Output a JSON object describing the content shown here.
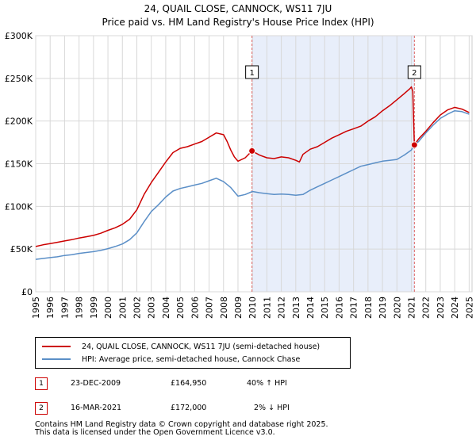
{
  "title": "24, QUAIL CLOSE, CANNOCK, WS11 7JU",
  "subtitle": "Price paid vs. HM Land Registry's House Price Index (HPI)",
  "colors": {
    "price_line": "#cc0000",
    "hpi_line": "#5b8fc7",
    "shade": "#e8eefa",
    "grid": "#d8d8d8",
    "marker": "#cc0000"
  },
  "chart_data": {
    "type": "line",
    "title": "24, QUAIL CLOSE, CANNOCK, WS11 7JU",
    "subtitle": "Price paid vs. HM Land Registry's House Price Index (HPI)",
    "xlim": [
      1995,
      2025.2
    ],
    "ylim": [
      0,
      300000
    ],
    "x_ticks": [
      1995,
      1996,
      1997,
      1998,
      1999,
      2000,
      2001,
      2002,
      2003,
      2004,
      2005,
      2006,
      2007,
      2008,
      2009,
      2010,
      2011,
      2012,
      2013,
      2014,
      2015,
      2016,
      2017,
      2018,
      2019,
      2020,
      2021,
      2022,
      2023,
      2024,
      2025
    ],
    "x_tick_labels": [
      "1995",
      "1996",
      "1997",
      "1998",
      "1999",
      "2000",
      "2001",
      "2002",
      "2003",
      "2004",
      "2005",
      "2006",
      "2007",
      "2008",
      "2009",
      "2010",
      "2011",
      "2012",
      "2013",
      "2014",
      "2015",
      "2016",
      "2017",
      "2018",
      "2019",
      "2020",
      "2021",
      "2022",
      "2023",
      "2024",
      "2025"
    ],
    "y_ticks": [
      0,
      50000,
      100000,
      150000,
      200000,
      250000,
      300000
    ],
    "y_tick_labels": [
      "£0",
      "£50K",
      "£100K",
      "£150K",
      "£200K",
      "£250K",
      "£300K"
    ],
    "grid": true,
    "shaded_range": [
      2009.97,
      2021.21
    ],
    "series": [
      {
        "name": "24, QUAIL CLOSE, CANNOCK, WS11 7JU (semi-detached house)",
        "color": "#cc0000",
        "x": [
          1995,
          1995.5,
          1996,
          1996.5,
          1997,
          1997.5,
          1998,
          1998.5,
          1999,
          1999.5,
          2000,
          2000.5,
          2001,
          2001.5,
          2002,
          2002.5,
          2003,
          2003.5,
          2004,
          2004.5,
          2005,
          2005.5,
          2006,
          2006.5,
          2007,
          2007.5,
          2008,
          2008.25,
          2008.5,
          2008.75,
          2009,
          2009.5,
          2009.97,
          2010.5,
          2011,
          2011.5,
          2012,
          2012.5,
          2013,
          2013.25,
          2013.5,
          2014,
          2014.5,
          2015,
          2015.5,
          2016,
          2016.5,
          2017,
          2017.5,
          2018,
          2018.5,
          2019,
          2019.5,
          2020,
          2020.5,
          2020.9,
          2021.0,
          2021.1,
          2021.21,
          2021.5,
          2022,
          2022.5,
          2023,
          2023.5,
          2024,
          2024.5,
          2025
        ],
        "y": [
          53000,
          55000,
          56500,
          58000,
          59500,
          61000,
          63000,
          64500,
          66000,
          68500,
          72000,
          75000,
          79000,
          85000,
          96000,
          114000,
          128000,
          140000,
          152000,
          163000,
          168000,
          170000,
          173000,
          176000,
          181000,
          186000,
          184000,
          176000,
          166000,
          158000,
          153000,
          157000,
          164950,
          160000,
          157000,
          156000,
          158000,
          157000,
          154000,
          152000,
          161000,
          167000,
          170000,
          175000,
          180000,
          184000,
          188000,
          191000,
          194000,
          200000,
          205000,
          212000,
          218000,
          225000,
          232000,
          238000,
          240000,
          235000,
          172000,
          179000,
          188000,
          198000,
          207000,
          213000,
          216000,
          214000,
          210000
        ]
      },
      {
        "name": "HPI: Average price, semi-detached house, Cannock Chase",
        "color": "#5b8fc7",
        "x": [
          1995,
          1995.5,
          1996,
          1996.5,
          1997,
          1997.5,
          1998,
          1998.5,
          1999,
          1999.5,
          2000,
          2000.5,
          2001,
          2001.5,
          2002,
          2002.5,
          2003,
          2003.5,
          2004,
          2004.5,
          2005,
          2005.5,
          2006,
          2006.5,
          2007,
          2007.5,
          2008,
          2008.5,
          2009,
          2009.5,
          2010,
          2010.5,
          2011,
          2011.5,
          2012,
          2012.5,
          2013,
          2013.5,
          2014,
          2014.5,
          2015,
          2015.5,
          2016,
          2016.5,
          2017,
          2017.5,
          2018,
          2018.5,
          2019,
          2019.5,
          2020,
          2020.5,
          2021,
          2021.21,
          2021.5,
          2022,
          2022.5,
          2023,
          2023.5,
          2024,
          2024.5,
          2025
        ],
        "y": [
          38000,
          39000,
          40000,
          41000,
          42500,
          43500,
          45000,
          46000,
          47000,
          48500,
          50500,
          53000,
          56000,
          61000,
          69000,
          82000,
          94000,
          102000,
          111000,
          118000,
          121000,
          123000,
          125000,
          127000,
          130000,
          133000,
          129000,
          122000,
          112000,
          114000,
          117500,
          116000,
          115000,
          114000,
          114500,
          114000,
          113000,
          114000,
          119000,
          123000,
          127000,
          131000,
          135000,
          139000,
          143000,
          147000,
          149000,
          151000,
          153000,
          154000,
          155000,
          160000,
          166000,
          172000,
          176000,
          186000,
          195000,
          203000,
          208000,
          212000,
          211000,
          208000
        ]
      }
    ],
    "annotations": [
      {
        "label": "1",
        "x": 2009.97,
        "y": 164950
      },
      {
        "label": "2",
        "x": 2021.21,
        "y": 172000
      }
    ]
  },
  "legend": {
    "items": [
      {
        "label": "24, QUAIL CLOSE, CANNOCK, WS11 7JU (semi-detached house)"
      },
      {
        "label": "HPI: Average price, semi-detached house, Cannock Chase"
      }
    ]
  },
  "transactions": [
    {
      "num": "1",
      "date": "23-DEC-2009",
      "price": "£164,950",
      "hpi": "40% ↑ HPI"
    },
    {
      "num": "2",
      "date": "16-MAR-2021",
      "price": "£172,000",
      "hpi": "2% ↓ HPI"
    }
  ],
  "footer": {
    "line1": "Contains HM Land Registry data © Crown copyright and database right 2025.",
    "line2": "This data is licensed under the Open Government Licence v3.0."
  }
}
